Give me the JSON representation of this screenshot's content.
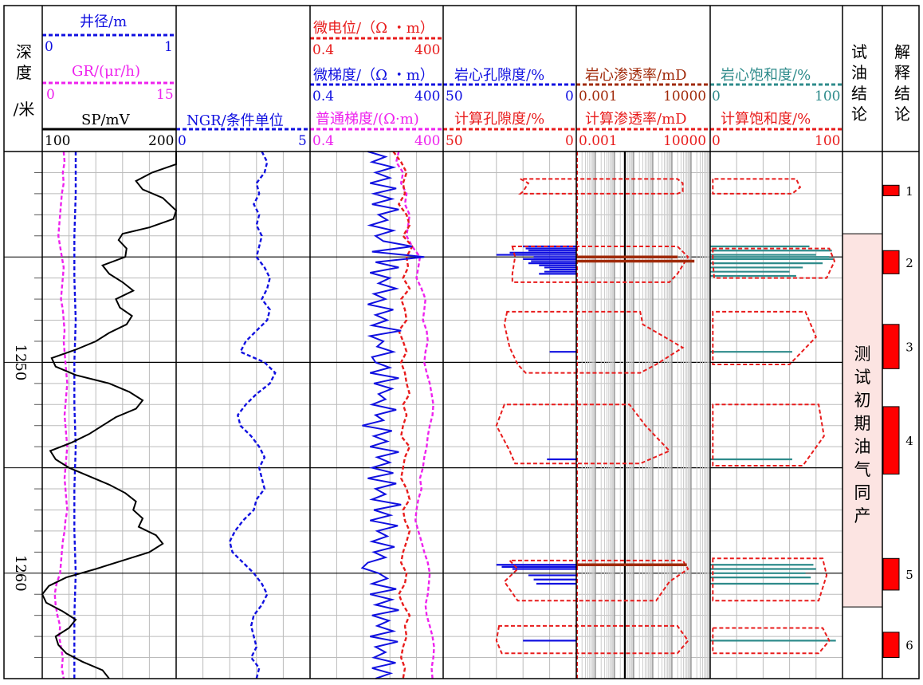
{
  "colors": {
    "black": "#000000",
    "blue": "#1010e0",
    "red": "#e81c1c",
    "magenta": "#ee22ee",
    "brown": "#a02a0a",
    "teal": "#2e8b8b",
    "pink_fill": "#fce4e2",
    "zone_red": "#ff0000"
  },
  "header": {
    "depth_label": [
      "深",
      "度",
      "/米"
    ],
    "oil_test_label": "试油结论",
    "interp_label": "解释结论"
  },
  "tracks": {
    "t1": {
      "curves": [
        {
          "name": "井径/m",
          "min": "0",
          "max": "1",
          "color": "blue"
        },
        {
          "name": "GR/(μr/h)",
          "min": "0",
          "max": "15",
          "color": "magenta"
        },
        {
          "name": "SP/mV",
          "min": "100",
          "max": "200",
          "color": "black"
        }
      ]
    },
    "t2": {
      "curves": [
        {
          "name": "NGR/条件单位",
          "min": "0",
          "max": "5",
          "color": "blue"
        }
      ]
    },
    "t3": {
      "curves": [
        {
          "name": "微电位/（Ω ・m）",
          "min": "0.4",
          "max": "400",
          "color": "red"
        },
        {
          "name": "微梯度/（Ω ・m）",
          "min": "0.4",
          "max": "400",
          "color": "blue"
        },
        {
          "name": "普通梯度/(Ω·m)",
          "min": "0.4",
          "max": "400",
          "color": "magenta"
        }
      ]
    },
    "t4": {
      "curves": [
        {
          "name": "岩心孔隙度/%",
          "min": "50",
          "max": "0",
          "color": "blue"
        },
        {
          "name": "计算孔隙度/%",
          "min": "50",
          "max": "0",
          "color": "red"
        }
      ]
    },
    "t5": {
      "curves": [
        {
          "name": "岩心渗透率/mD",
          "min": "0.001",
          "max": "10000",
          "color": "brown"
        },
        {
          "name": "计算渗透率/mD",
          "min": "0.001",
          "max": "10000",
          "color": "red"
        }
      ]
    },
    "t6": {
      "curves": [
        {
          "name": "岩心饱和度/%",
          "min": "0",
          "max": "100",
          "color": "teal"
        },
        {
          "name": "计算饱和度/%",
          "min": "0",
          "max": "100",
          "color": "red"
        }
      ]
    }
  },
  "depth_ticks": [
    "1250",
    "1260"
  ],
  "oil_test": {
    "text": "测试初期油气同产",
    "top_depth": 1243.9,
    "bottom_depth": 1261.6
  },
  "chart_data": {
    "type": "well_log",
    "depth_range": [
      1240,
      1265
    ],
    "depth_unit": "米",
    "sp": {
      "depth": [
        1240,
        1240.6,
        1241,
        1241.4,
        1241.8,
        1242.2,
        1242.8,
        1243.2,
        1243.6,
        1243.9,
        1244.2,
        1244.6,
        1245,
        1245.4,
        1245.8,
        1246.2,
        1246.6,
        1247,
        1247.4,
        1247.8,
        1248.2,
        1248.6,
        1249,
        1249.4,
        1249.8,
        1250.2,
        1250.6,
        1251,
        1251.4,
        1251.8,
        1252.2,
        1252.6,
        1253,
        1253.4,
        1253.8,
        1254.2,
        1254.6,
        1255,
        1255.4,
        1255.8,
        1256.2,
        1256.6,
        1257,
        1257.4,
        1257.8,
        1258.2,
        1258.6,
        1259,
        1259.4,
        1259.8,
        1260.2,
        1260.6,
        1261,
        1261.4,
        1261.8,
        1262.2,
        1262.6,
        1263,
        1263.4,
        1263.8,
        1264.2,
        1264.6,
        1265
      ],
      "value": [
        200,
        200,
        182,
        170,
        175,
        190,
        200,
        198,
        180,
        160,
        157,
        163,
        162,
        145,
        150,
        160,
        168,
        155,
        158,
        167,
        163,
        150,
        140,
        125,
        107,
        110,
        125,
        150,
        165,
        175,
        170,
        155,
        145,
        135,
        122,
        106,
        110,
        120,
        135,
        150,
        162,
        170,
        168,
        175,
        172,
        185,
        190,
        180,
        160,
        140,
        118,
        105,
        100,
        103,
        115,
        125,
        120,
        110,
        112,
        118,
        130,
        145,
        150
      ],
      "color": "black"
    },
    "caliper": {
      "depth": [
        1240,
        1242,
        1244,
        1246,
        1248,
        1250,
        1252,
        1254,
        1256,
        1258,
        1260,
        1262,
        1264,
        1265
      ],
      "value": [
        0.25,
        0.25,
        0.24,
        0.24,
        0.25,
        0.24,
        0.24,
        0.25,
        0.24,
        0.24,
        0.25,
        0.24,
        0.24,
        0.24
      ],
      "color": "blue"
    },
    "gr": {
      "depth": [
        1240,
        1240.5,
        1241,
        1241.5,
        1242,
        1242.5,
        1243,
        1243.5,
        1244,
        1244.5,
        1245,
        1245.5,
        1246,
        1246.5,
        1247,
        1247.5,
        1248,
        1248.5,
        1249,
        1249.5,
        1250,
        1250.5,
        1251,
        1251.5,
        1252,
        1252.5,
        1253,
        1253.5,
        1254,
        1254.5,
        1255,
        1255.5,
        1256,
        1256.5,
        1257,
        1257.5,
        1258,
        1258.5,
        1259,
        1259.5,
        1260,
        1260.5,
        1261,
        1261.5,
        1262,
        1262.5,
        1263,
        1263.5,
        1264,
        1264.5,
        1265
      ],
      "value": [
        2.4,
        2.5,
        2.3,
        2.4,
        2.2,
        2.1,
        2.0,
        1.9,
        1.8,
        2.0,
        2.2,
        2.4,
        2.3,
        2.2,
        2.1,
        2.3,
        2.4,
        2.5,
        2.4,
        2.5,
        2.6,
        2.7,
        2.8,
        2.7,
        2.6,
        2.5,
        2.6,
        2.7,
        2.8,
        2.7,
        2.6,
        2.5,
        2.6,
        2.7,
        2.8,
        2.6,
        2.5,
        2.3,
        2.2,
        2.1,
        2.0,
        1.6,
        1.4,
        1.5,
        1.7,
        2.0,
        1.9,
        2.1,
        2.3,
        2.2,
        2.4
      ],
      "color": "magenta"
    },
    "ngr": {
      "depth": [
        1240,
        1240.5,
        1241,
        1241.5,
        1242,
        1242.5,
        1243,
        1243.5,
        1244,
        1244.5,
        1245,
        1245.5,
        1246,
        1246.5,
        1247,
        1247.5,
        1248,
        1248.5,
        1249,
        1249.5,
        1250,
        1250.5,
        1251,
        1251.5,
        1252,
        1252.5,
        1253,
        1253.5,
        1254,
        1254.5,
        1255,
        1255.5,
        1256,
        1256.5,
        1257,
        1257.5,
        1258,
        1258.5,
        1259,
        1259.5,
        1260,
        1260.5,
        1261,
        1261.5,
        1262,
        1262.5,
        1263,
        1263.5,
        1264,
        1264.5,
        1265
      ],
      "value": [
        3.2,
        3.4,
        3.3,
        3.0,
        3.1,
        2.9,
        3.1,
        3.0,
        3.2,
        3.1,
        3.0,
        3.3,
        3.5,
        3.4,
        3.2,
        3.5,
        3.4,
        3.0,
        2.6,
        2.4,
        3.3,
        3.7,
        3.5,
        3.0,
        2.6,
        2.3,
        2.4,
        2.8,
        3.1,
        3.3,
        3.1,
        3.2,
        3.3,
        3.0,
        2.9,
        2.5,
        2.2,
        2.0,
        2.1,
        2.5,
        2.9,
        3.2,
        3.4,
        3.2,
        2.9,
        2.8,
        2.9,
        3.0,
        2.8,
        3.1,
        3.0
      ],
      "color": "blue"
    },
    "micro_potential": {
      "depth": [
        1240,
        1240.5,
        1241,
        1241.5,
        1242,
        1242.5,
        1243,
        1243.5,
        1244,
        1244.5,
        1245,
        1245.5,
        1246,
        1246.5,
        1247,
        1247.5,
        1248,
        1248.5,
        1249,
        1249.5,
        1250,
        1250.5,
        1251,
        1251.5,
        1252,
        1252.5,
        1253,
        1253.5,
        1254,
        1254.5,
        1255,
        1255.5,
        1256,
        1256.5,
        1257,
        1257.5,
        1258,
        1258.5,
        1259,
        1259.5,
        1260,
        1260.5,
        1261,
        1261.5,
        1262,
        1262.5,
        1263,
        1263.5,
        1264,
        1264.5,
        1265
      ],
      "value": [
        30,
        45,
        60,
        50,
        55,
        40,
        60,
        70,
        50,
        80,
        60,
        65,
        50,
        70,
        45,
        55,
        60,
        40,
        50,
        60,
        45,
        55,
        60,
        70,
        50,
        60,
        50,
        45,
        70,
        55,
        50,
        45,
        60,
        70,
        50,
        55,
        70,
        60,
        50,
        45,
        60,
        55,
        40,
        50,
        70,
        55,
        60,
        50,
        45,
        55,
        50
      ],
      "color": "red"
    },
    "micro_gradient": {
      "depth": [
        1240,
        1240.25,
        1240.5,
        1240.75,
        1241,
        1241.25,
        1241.5,
        1241.75,
        1242,
        1242.25,
        1242.5,
        1242.75,
        1243,
        1243.25,
        1243.5,
        1243.75,
        1244,
        1244.25,
        1244.5,
        1244.75,
        1245,
        1245.25,
        1245.5,
        1245.75,
        1246,
        1246.25,
        1246.5,
        1246.75,
        1247,
        1247.25,
        1247.5,
        1247.75,
        1248,
        1248.25,
        1248.5,
        1248.75,
        1249,
        1249.25,
        1249.5,
        1249.75,
        1250,
        1250.25,
        1250.5,
        1250.75,
        1251,
        1251.25,
        1251.5,
        1251.75,
        1252,
        1252.25,
        1252.5,
        1252.75,
        1253,
        1253.25,
        1253.5,
        1253.75,
        1254,
        1254.25,
        1254.5,
        1254.75,
        1255,
        1255.25,
        1255.5,
        1255.75,
        1256,
        1256.25,
        1256.5,
        1256.75,
        1257,
        1257.25,
        1257.5,
        1257.75,
        1258,
        1258.25,
        1258.5,
        1258.75,
        1259,
        1259.25,
        1259.5,
        1259.75,
        1260,
        1260.25,
        1260.5,
        1260.75,
        1261,
        1261.25,
        1261.5,
        1261.75,
        1262,
        1262.25,
        1262.5,
        1262.75,
        1263,
        1263.25,
        1263.5,
        1263.75,
        1264,
        1264.25,
        1264.5,
        1264.75,
        1265
      ],
      "value": [
        8,
        20,
        10,
        30,
        12,
        25,
        9,
        35,
        11,
        28,
        10,
        40,
        14,
        22,
        9,
        30,
        12,
        18,
        80,
        10,
        150,
        12,
        40,
        9,
        25,
        14,
        35,
        11,
        20,
        8,
        30,
        12,
        22,
        10,
        45,
        9,
        18,
        13,
        30,
        10,
        12,
        25,
        9,
        40,
        11,
        28,
        14,
        20,
        10,
        35,
        12,
        18,
        6,
        28,
        11,
        22,
        9,
        40,
        13,
        25,
        10,
        30,
        8,
        35,
        12,
        20,
        10,
        45,
        11,
        26,
        9,
        38,
        13,
        22,
        10,
        32,
        11,
        20,
        8,
        6,
        14,
        22,
        10,
        35,
        9,
        28,
        12,
        40,
        10,
        24,
        13,
        30,
        9,
        38,
        12,
        20,
        11,
        34,
        10,
        26,
        12
      ],
      "color": "blue"
    },
    "normal_gradient": {
      "depth": [
        1240,
        1240.5,
        1241,
        1241.5,
        1242,
        1242.5,
        1243,
        1243.5,
        1244,
        1244.5,
        1245,
        1245.5,
        1246,
        1246.5,
        1247,
        1247.5,
        1248,
        1248.5,
        1249,
        1249.5,
        1250,
        1250.5,
        1251,
        1251.5,
        1252,
        1252.5,
        1253,
        1253.5,
        1254,
        1254.5,
        1255,
        1255.5,
        1256,
        1256.5,
        1257,
        1257.5,
        1258,
        1258.5,
        1259,
        1259.5,
        1260,
        1260.5,
        1261,
        1261.5,
        1262,
        1262.5,
        1263,
        1263.5,
        1264,
        1264.5,
        1265
      ],
      "value": [
        40,
        35,
        50,
        45,
        60,
        55,
        70,
        65,
        60,
        80,
        120,
        110,
        100,
        130,
        160,
        150,
        140,
        170,
        180,
        160,
        150,
        170,
        200,
        220,
        240,
        230,
        200,
        180,
        170,
        150,
        140,
        120,
        130,
        110,
        100,
        95,
        110,
        130,
        150,
        180,
        200,
        190,
        180,
        160,
        170,
        200,
        230,
        250,
        240,
        220,
        230
      ],
      "color": "magenta"
    },
    "core_porosity": {
      "depth": [
        1240,
        1244.5,
        1244.6,
        1244.7,
        1244.8,
        1244.9,
        1245.0,
        1245.1,
        1245.2,
        1245.3,
        1245.4,
        1245.5,
        1245.6,
        1245.7,
        1245.8,
        1249.5,
        1254.6,
        1259.6,
        1259.7,
        1259.8,
        1260.1,
        1260.3,
        1260.5,
        1263.2
      ],
      "value": [
        null,
        20,
        19,
        18,
        25,
        30,
        16,
        20,
        17,
        18,
        14,
        12,
        10,
        12,
        14,
        10,
        11,
        30,
        28,
        24,
        18,
        16,
        15,
        20
      ],
      "color": "blue"
    },
    "calc_porosity": {
      "polygons": [
        {
          "depth": [
            1241.3,
            1241.5,
            1241.9,
            1242.0
          ],
          "left": [
            21,
            18,
            20,
            21
          ],
          "right": [
            -38,
            -40,
            -40,
            -38
          ]
        },
        {
          "depth": [
            1244.5,
            1245.0,
            1245.8,
            1246.2
          ],
          "left": [
            24,
            23,
            24,
            24
          ],
          "right": [
            -38,
            -42,
            -38,
            -35
          ]
        },
        {
          "depth": [
            1247.6,
            1248.2,
            1249.3,
            1250.1,
            1250.5
          ],
          "left": [
            26,
            27,
            25,
            22,
            19
          ],
          "right": [
            -24,
            -25,
            -40,
            -30,
            -24
          ]
        },
        {
          "depth": [
            1252.0,
            1253.0,
            1254.2,
            1254.8
          ],
          "left": [
            27,
            30,
            25,
            23
          ],
          "right": [
            -20,
            -26,
            -35,
            -24
          ]
        },
        {
          "depth": [
            1259.4,
            1259.8,
            1260.4,
            1261.3
          ],
          "left": [
            25,
            22,
            27,
            22
          ],
          "right": [
            -40,
            -42,
            -35,
            -30
          ]
        },
        {
          "depth": [
            1262.5,
            1263.2,
            1263.8
          ],
          "left": [
            29,
            30,
            28
          ],
          "right": [
            -38,
            -42,
            -38
          ]
        }
      ],
      "color": "red"
    },
    "core_permeability": {
      "depth": [
        1245.0,
        1245.2,
        1259.6
      ],
      "value": [
        200,
        1500,
        600
      ],
      "color": "brown"
    },
    "calc_permeability": {
      "depth": [
        1240,
        1265
      ],
      "value": [
        0.001,
        0.001
      ],
      "color": "red"
    },
    "core_saturation": {
      "depth": [
        1244.5,
        1244.7,
        1244.9,
        1245.0,
        1245.1,
        1245.3,
        1245.5,
        1245.7,
        1245.9,
        1249.5,
        1254.6,
        1259.6,
        1259.8,
        1260.0,
        1260.2,
        1260.5,
        1263.2
      ],
      "value": [
        75,
        92,
        80,
        90,
        94,
        85,
        70,
        60,
        65,
        62,
        62,
        78,
        80,
        72,
        76,
        82,
        95
      ],
      "color": "teal"
    },
    "calc_saturation": {
      "polygons": [
        {
          "depth": [
            1241.3,
            1241.7,
            1242.0
          ],
          "left": [
            2,
            2,
            2
          ],
          "right": [
            65,
            68,
            62
          ]
        },
        {
          "depth": [
            1244.6,
            1245.2,
            1246.0
          ],
          "left": [
            2,
            2,
            3
          ],
          "right": [
            90,
            94,
            88
          ]
        },
        {
          "depth": [
            1247.6,
            1248.8,
            1250.1
          ],
          "left": [
            2,
            2,
            2
          ],
          "right": [
            72,
            80,
            60
          ]
        },
        {
          "depth": [
            1252.0,
            1253.5,
            1254.9
          ],
          "left": [
            2,
            2,
            2
          ],
          "right": [
            82,
            86,
            70
          ]
        },
        {
          "depth": [
            1259.3,
            1260.1,
            1261.3
          ],
          "left": [
            2,
            2,
            2
          ],
          "right": [
            85,
            88,
            82
          ]
        },
        {
          "depth": [
            1262.6,
            1263.2,
            1263.8
          ],
          "left": [
            2,
            2,
            2
          ],
          "right": [
            85,
            90,
            82
          ]
        }
      ],
      "color": "red"
    },
    "interp_zones": [
      {
        "label": "1",
        "top": 1241.6,
        "bottom": 1242.1
      },
      {
        "label": "2",
        "top": 1244.7,
        "bottom": 1245.8
      },
      {
        "label": "3",
        "top": 1248.2,
        "bottom": 1250.3
      },
      {
        "label": "4",
        "top": 1252.1,
        "bottom": 1255.3
      },
      {
        "label": "5",
        "top": 1259.3,
        "bottom": 1260.8
      },
      {
        "label": "6",
        "top": 1262.8,
        "bottom": 1264.0
      }
    ]
  }
}
